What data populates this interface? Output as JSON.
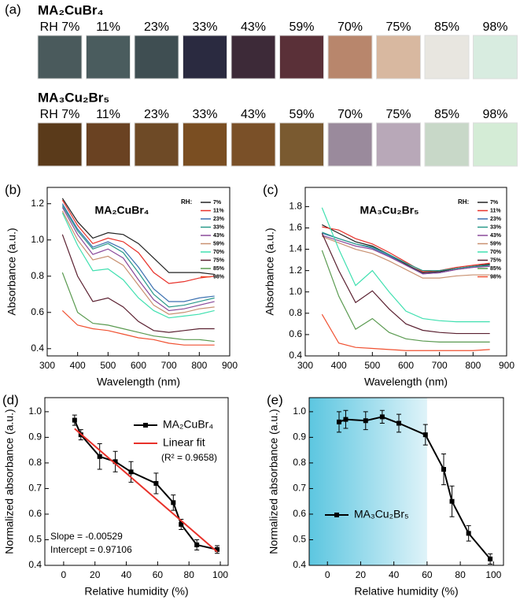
{
  "photos": {
    "panel_label": "(a)",
    "rows": [
      {
        "title": "MA₂CuBr₄",
        "labels": [
          "RH 7%",
          "11%",
          "23%",
          "33%",
          "43%",
          "59%",
          "70%",
          "75%",
          "85%",
          "98%"
        ]
      },
      {
        "title": "MA₃Cu₂Br₅",
        "labels": [
          "RH 7%",
          "11%",
          "23%",
          "33%",
          "43%",
          "59%",
          "70%",
          "75%",
          "85%",
          "98%"
        ]
      }
    ]
  },
  "chart_data": [
    {
      "type": "line",
      "panel_label": "(b)",
      "x_label": "Wavelength (nm)",
      "y_label": "Absorbance (a.u.)",
      "annotations": [
        "MA₂CuBr₄"
      ],
      "legend_title": "RH:",
      "legend_position": "top-right",
      "xlim": [
        300,
        900
      ],
      "xticks": [
        300,
        400,
        500,
        600,
        700,
        800,
        900
      ],
      "ylim": [
        0.36,
        1.29
      ],
      "yticks": [
        0.4,
        0.6,
        0.8,
        {
          "value": 1,
          "label": "1.0"
        },
        1.2
      ],
      "x": [
        350,
        400,
        450,
        500,
        550,
        600,
        650,
        700,
        750,
        800,
        850
      ],
      "series": [
        {
          "name": "7%",
          "color": "#222222",
          "values": [
            1.23,
            1.1,
            1.01,
            1.04,
            1.03,
            0.98,
            0.9,
            0.82,
            0.82,
            0.82,
            0.81
          ]
        },
        {
          "name": "11%",
          "color": "#e8312a",
          "values": [
            1.22,
            1.08,
            0.98,
            1.01,
            0.99,
            0.93,
            0.82,
            0.76,
            0.77,
            0.79,
            0.8
          ]
        },
        {
          "name": "23%",
          "color": "#3a6fb0",
          "values": [
            1.2,
            1.06,
            0.96,
            0.99,
            0.95,
            0.85,
            0.73,
            0.66,
            0.66,
            0.68,
            0.69
          ]
        },
        {
          "name": "33%",
          "color": "#2a9a8a",
          "values": [
            1.19,
            1.05,
            0.95,
            0.98,
            0.93,
            0.82,
            0.7,
            0.63,
            0.64,
            0.66,
            0.68
          ]
        },
        {
          "name": "43%",
          "color": "#8a4a9a",
          "values": [
            1.18,
            1.03,
            0.92,
            0.95,
            0.9,
            0.78,
            0.67,
            0.61,
            0.62,
            0.64,
            0.66
          ]
        },
        {
          "name": "59%",
          "color": "#c89070",
          "values": [
            1.16,
            1.0,
            0.89,
            0.91,
            0.86,
            0.75,
            0.64,
            0.59,
            0.6,
            0.62,
            0.63
          ]
        },
        {
          "name": "70%",
          "color": "#40e0b0",
          "values": [
            1.15,
            0.97,
            0.83,
            0.84,
            0.78,
            0.68,
            0.61,
            0.57,
            0.58,
            0.59,
            0.61
          ]
        },
        {
          "name": "75%",
          "color": "#5a2030",
          "values": [
            1.03,
            0.8,
            0.66,
            0.68,
            0.63,
            0.55,
            0.5,
            0.49,
            0.5,
            0.51,
            0.51
          ]
        },
        {
          "name": "85%",
          "color": "#5a9a50",
          "values": [
            0.82,
            0.6,
            0.54,
            0.53,
            0.51,
            0.49,
            0.47,
            0.46,
            0.45,
            0.45,
            0.44
          ]
        },
        {
          "name": "98%",
          "color": "#f05030",
          "values": [
            0.61,
            0.53,
            0.51,
            0.5,
            0.48,
            0.46,
            0.45,
            0.43,
            0.42,
            0.42,
            0.42
          ]
        }
      ]
    },
    {
      "type": "line",
      "panel_label": "(c)",
      "x_label": "Wavelength (nm)",
      "y_label": "Absorbance (a.u.)",
      "annotations": [
        "MA₃Cu₂Br₅"
      ],
      "legend_title": "RH:",
      "legend_position": "top-right",
      "xlim": [
        300,
        900
      ],
      "xticks": [
        300,
        400,
        500,
        600,
        700,
        800,
        900
      ],
      "ylim": [
        0.4,
        1.98
      ],
      "yticks": [
        0.4,
        0.6,
        0.8,
        {
          "value": 1,
          "label": "1.0"
        },
        1.2,
        1.4,
        1.6,
        1.8
      ],
      "x": [
        350,
        400,
        450,
        500,
        550,
        600,
        650,
        700,
        750,
        800,
        850
      ],
      "series": [
        {
          "name": "7%",
          "color": "#222222",
          "values": [
            1.63,
            1.55,
            1.47,
            1.43,
            1.35,
            1.26,
            1.18,
            1.19,
            1.22,
            1.24,
            1.26
          ]
        },
        {
          "name": "11%",
          "color": "#e8312a",
          "values": [
            1.61,
            1.58,
            1.5,
            1.45,
            1.37,
            1.28,
            1.19,
            1.2,
            1.23,
            1.25,
            1.27
          ]
        },
        {
          "name": "23%",
          "color": "#3a6fb0",
          "values": [
            1.55,
            1.5,
            1.45,
            1.41,
            1.34,
            1.25,
            1.17,
            1.18,
            1.21,
            1.23,
            1.25
          ]
        },
        {
          "name": "33%",
          "color": "#2a9a8a",
          "values": [
            1.56,
            1.5,
            1.45,
            1.42,
            1.35,
            1.27,
            1.2,
            1.2,
            1.22,
            1.24,
            1.25
          ]
        },
        {
          "name": "43%",
          "color": "#8a4a9a",
          "values": [
            1.53,
            1.48,
            1.43,
            1.4,
            1.33,
            1.25,
            1.17,
            1.18,
            1.21,
            1.23,
            1.24
          ]
        },
        {
          "name": "59%",
          "color": "#c89070",
          "values": [
            1.52,
            1.46,
            1.4,
            1.36,
            1.29,
            1.21,
            1.13,
            1.13,
            1.15,
            1.16,
            1.16
          ]
        },
        {
          "name": "70%",
          "color": "#40e0b0",
          "values": [
            1.79,
            1.4,
            1.06,
            1.2,
            1.0,
            0.82,
            0.75,
            0.73,
            0.72,
            0.72,
            0.72
          ]
        },
        {
          "name": "75%",
          "color": "#5a2030",
          "values": [
            1.55,
            1.2,
            0.9,
            1.01,
            0.84,
            0.7,
            0.64,
            0.62,
            0.61,
            0.61,
            0.61
          ]
        },
        {
          "name": "85%",
          "color": "#5a9a50",
          "values": [
            1.39,
            0.96,
            0.65,
            0.75,
            0.62,
            0.56,
            0.54,
            0.53,
            0.53,
            0.53,
            0.53
          ]
        },
        {
          "name": "98%",
          "color": "#f05030",
          "values": [
            0.79,
            0.52,
            0.48,
            0.47,
            0.46,
            0.45,
            0.45,
            0.45,
            0.45,
            0.45,
            0.46
          ]
        }
      ]
    },
    {
      "type": "line",
      "panel_label": "(d)",
      "x_label": "Relative humidity (%)",
      "y_label": "Normalized absorbance (a.u.)",
      "annotations": [
        "(R² = 0.9658)",
        "Slope = -0.00529",
        "Intercept = 0.97106"
      ],
      "legend_position": "top-right",
      "xlim": [
        -12,
        105
      ],
      "xticks": [
        0,
        20,
        40,
        60,
        80,
        100
      ],
      "ylim": [
        0.4,
        1.055
      ],
      "yticks": [
        0.4,
        0.5,
        0.6,
        0.7,
        0.8,
        0.9,
        {
          "value": 1,
          "label": "1.0"
        }
      ],
      "series": [
        {
          "name": "MA₂CuBr₄",
          "color": "#000000",
          "markers": true,
          "x": [
            7,
            11,
            23,
            33,
            43,
            59,
            70,
            75,
            85,
            98
          ],
          "values": [
            0.967,
            0.91,
            0.825,
            0.805,
            0.765,
            0.72,
            0.645,
            0.56,
            0.48,
            0.462
          ],
          "errors": [
            0.02,
            0.02,
            0.05,
            0.04,
            0.04,
            0.04,
            0.03,
            0.02,
            0.02,
            0.015
          ]
        },
        {
          "name": "Linear fit",
          "color": "#e8312a",
          "x": [
            7,
            98
          ],
          "values": [
            0.934,
            0.453
          ]
        }
      ]
    },
    {
      "type": "line",
      "panel_label": "(e)",
      "x_label": "Relative humidity (%)",
      "y_label": "Normalized absorbance (a.u.)",
      "legend_position": "bottom-left",
      "shade_xrange": [
        -11,
        60
      ],
      "xlim": [
        -11,
        106
      ],
      "xticks": [
        0,
        20,
        40,
        60,
        80,
        100
      ],
      "ylim": [
        0.4,
        1.055
      ],
      "yticks": [
        0.4,
        0.5,
        0.6,
        0.7,
        0.8,
        0.9,
        {
          "value": 1,
          "label": "1.0"
        }
      ],
      "series": [
        {
          "name": "MA₃Cu₂Br₅",
          "color": "#000000",
          "markers": true,
          "x": [
            7,
            11,
            23,
            33,
            43,
            59,
            70,
            75,
            85,
            98
          ],
          "values": [
            0.96,
            0.97,
            0.965,
            0.98,
            0.955,
            0.91,
            0.775,
            0.65,
            0.525,
            0.425
          ],
          "errors": [
            0.04,
            0.035,
            0.035,
            0.025,
            0.035,
            0.04,
            0.06,
            0.06,
            0.03,
            0.02
          ]
        }
      ]
    }
  ]
}
